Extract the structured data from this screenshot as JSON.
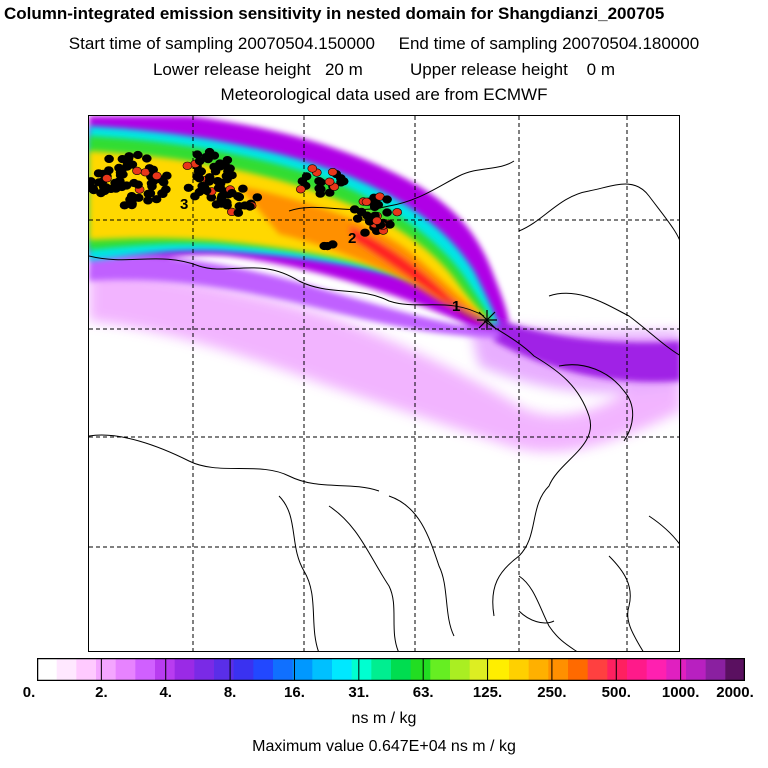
{
  "header": {
    "title": "Column-integrated emission sensitivity in nested domain for Shangdianzi_200705",
    "line2": "Start time of sampling 20070504.150000     End time of sampling 20070504.180000",
    "line3": "Lower release height   20 m          Upper release height    0 m",
    "line4": "Meteorological data used are from ECMWF"
  },
  "map": {
    "receptor_labels": [
      "1",
      "2",
      "3"
    ],
    "colors": {
      "plume_core": "#ff2020",
      "plume_mid": "#ffd800",
      "plume_outer": "#33dd33",
      "plume_edge": "#00e6e6",
      "plume_fringe": "#b000e6",
      "plume_faint": "#f0a8ff",
      "cluster_black": "#000000",
      "cluster_red": "#e8361a"
    }
  },
  "colorbar": {
    "labels": [
      "0.",
      "2.",
      "4.",
      "8.",
      "16.",
      "31.",
      "63.",
      "125.",
      "250.",
      "500.",
      "1000.",
      "2000."
    ],
    "colors": [
      "#ffffff",
      "#ffe8ff",
      "#ffcaff",
      "#f4a6ff",
      "#e783ff",
      "#d060ff",
      "#b83cf0",
      "#9a2ae6",
      "#7a2ae6",
      "#5a2ee8",
      "#3a32f0",
      "#2248ff",
      "#1070ff",
      "#0098ff",
      "#00c0ff",
      "#00e8ff",
      "#00ffd0",
      "#00ee90",
      "#00dd50",
      "#22dd22",
      "#66ee22",
      "#aaee22",
      "#ddee22",
      "#ffee00",
      "#ffd000",
      "#ffb000",
      "#ff9000",
      "#ff6a00",
      "#ff4040",
      "#ff2060",
      "#ff1a8a",
      "#ff20b0",
      "#e020c0",
      "#b820c0",
      "#8a20a0",
      "#5a1060"
    ],
    "unit": "ns m / kg"
  },
  "footer": {
    "max_value": "Maximum value  0.647E+04 ns m / kg"
  }
}
